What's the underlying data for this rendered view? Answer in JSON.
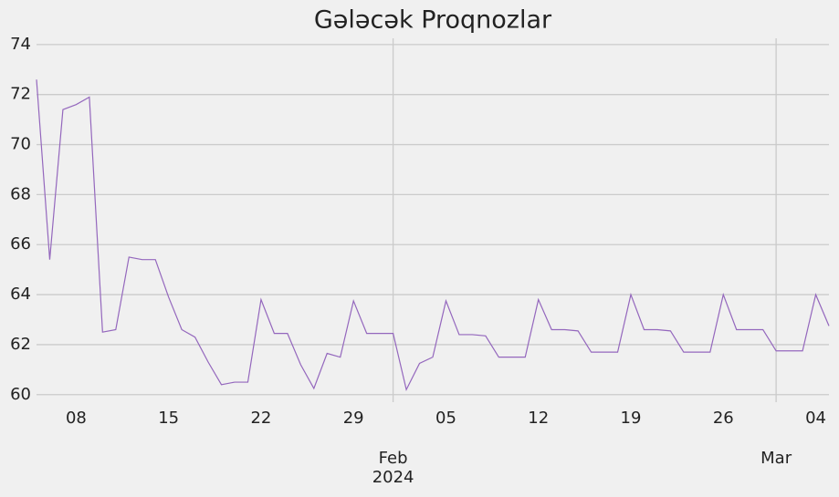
{
  "chart_data": {
    "type": "line",
    "title": "Gələcək Proqnozlar",
    "x": [
      "2024-01-05",
      "2024-01-06",
      "2024-01-07",
      "2024-01-08",
      "2024-01-09",
      "2024-01-10",
      "2024-01-11",
      "2024-01-12",
      "2024-01-13",
      "2024-01-14",
      "2024-01-15",
      "2024-01-16",
      "2024-01-17",
      "2024-01-18",
      "2024-01-19",
      "2024-01-20",
      "2024-01-21",
      "2024-01-22",
      "2024-01-23",
      "2024-01-24",
      "2024-01-25",
      "2024-01-26",
      "2024-01-27",
      "2024-01-28",
      "2024-01-29",
      "2024-01-30",
      "2024-01-31",
      "2024-02-01",
      "2024-02-02",
      "2024-02-03",
      "2024-02-04",
      "2024-02-05",
      "2024-02-06",
      "2024-02-07",
      "2024-02-08",
      "2024-02-09",
      "2024-02-10",
      "2024-02-11",
      "2024-02-12",
      "2024-02-13",
      "2024-02-14",
      "2024-02-15",
      "2024-02-16",
      "2024-02-17",
      "2024-02-18",
      "2024-02-19",
      "2024-02-20",
      "2024-02-21",
      "2024-02-22",
      "2024-02-23",
      "2024-02-24",
      "2024-02-25",
      "2024-02-26",
      "2024-02-27",
      "2024-02-28",
      "2024-02-29",
      "2024-03-01",
      "2024-03-02",
      "2024-03-03",
      "2024-03-04",
      "2024-03-05"
    ],
    "series": [
      {
        "color": "#9467bd",
        "values": [
          72.6,
          65.4,
          71.4,
          71.6,
          71.9,
          62.5,
          62.6,
          65.5,
          65.4,
          65.4,
          63.9,
          62.6,
          62.3,
          61.3,
          60.4,
          60.5,
          60.5,
          63.8,
          62.45,
          62.45,
          61.2,
          60.25,
          61.65,
          61.5,
          63.75,
          62.45,
          62.45,
          62.45,
          60.2,
          61.25,
          61.5,
          63.75,
          62.4,
          62.4,
          62.35,
          61.5,
          61.5,
          61.5,
          63.8,
          62.6,
          62.6,
          62.55,
          61.7,
          61.7,
          61.7,
          64.0,
          62.6,
          62.6,
          62.55,
          61.7,
          61.7,
          61.7,
          64.0,
          62.6,
          62.6,
          62.6,
          61.75,
          61.75,
          61.75,
          64.0,
          62.75
        ]
      }
    ],
    "xlim": [
      "2024-01-05",
      "2024-03-05"
    ],
    "xticks": [
      {
        "value": "2024-01-08",
        "label": "08"
      },
      {
        "value": "2024-01-15",
        "label": "15"
      },
      {
        "value": "2024-01-22",
        "label": "22"
      },
      {
        "value": "2024-01-29",
        "label": "29"
      },
      {
        "value": "2024-02-05",
        "label": "05"
      },
      {
        "value": "2024-02-12",
        "label": "12"
      },
      {
        "value": "2024-02-19",
        "label": "19"
      },
      {
        "value": "2024-02-26",
        "label": "26"
      },
      {
        "value": "2024-03-04",
        "label": "04"
      }
    ],
    "xticks_major": [
      {
        "value": "2024-02-01",
        "label": "Feb"
      },
      {
        "value": "2024-03-01",
        "label": "Mar"
      }
    ],
    "year_label": "2024",
    "ylim": [
      59.7,
      74.25
    ],
    "yticks": [
      60,
      62,
      64,
      66,
      68,
      70,
      72,
      74
    ],
    "grid": true
  }
}
